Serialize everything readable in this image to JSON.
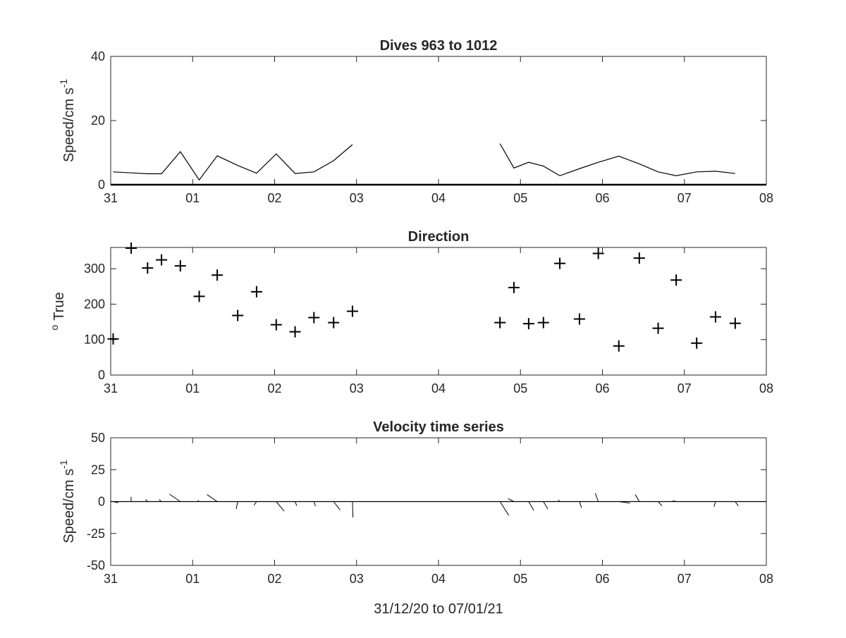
{
  "figure": {
    "xlabel": "31/12/20 to 07/01/21"
  },
  "chart_data": [
    {
      "type": "line",
      "title": "Dives 963 to 1012",
      "ylabel": "Speed/cm s",
      "ylabel_superscript": "-1",
      "xlim": [
        0,
        8
      ],
      "ylim": [
        0,
        40
      ],
      "xticks": [
        0,
        1,
        2,
        3,
        4,
        5,
        6,
        7,
        8
      ],
      "xtick_labels": [
        "31",
        "01",
        "02",
        "03",
        "04",
        "05",
        "06",
        "07",
        "08"
      ],
      "yticks": [
        0,
        20,
        40
      ],
      "ytick_labels": [
        "0",
        "20",
        "40"
      ],
      "grid": false,
      "series": [
        {
          "x": [
            0.03,
            0.25,
            0.45,
            0.62,
            0.85,
            1.08,
            1.3,
            1.55,
            1.78,
            2.02,
            2.25,
            2.48,
            2.72,
            2.95
          ],
          "y": [
            4.0,
            3.7,
            3.4,
            3.4,
            10.3,
            1.5,
            9.0,
            6.0,
            3.6,
            9.6,
            3.5,
            4.0,
            7.5,
            12.5
          ]
        },
        {
          "x": [
            4.75,
            4.92,
            5.1,
            5.28,
            5.48,
            5.72,
            5.95,
            6.2,
            6.45,
            6.68,
            6.9,
            7.15,
            7.38,
            7.62
          ],
          "y": [
            12.8,
            5.2,
            7.0,
            5.8,
            2.8,
            5.0,
            7.0,
            8.9,
            6.5,
            4.0,
            2.8,
            4.0,
            4.2,
            3.5
          ]
        }
      ]
    },
    {
      "type": "scatter",
      "title": "Direction",
      "ylabel": "True",
      "ylabel_prefix_superscript": "o",
      "marker": "+",
      "xlim": [
        0,
        8
      ],
      "ylim": [
        0,
        360
      ],
      "xticks": [
        0,
        1,
        2,
        3,
        4,
        5,
        6,
        7,
        8
      ],
      "xtick_labels": [
        "31",
        "01",
        "02",
        "03",
        "04",
        "05",
        "06",
        "07",
        "08"
      ],
      "yticks": [
        0,
        100,
        200,
        300
      ],
      "ytick_labels": [
        "0",
        "100",
        "200",
        "300"
      ],
      "grid": false,
      "x": [
        0.03,
        0.25,
        0.45,
        0.62,
        0.85,
        1.08,
        1.3,
        1.55,
        1.78,
        2.02,
        2.25,
        2.48,
        2.72,
        2.95,
        4.75,
        4.92,
        5.1,
        5.28,
        5.48,
        5.72,
        5.95,
        6.2,
        6.45,
        6.68,
        6.9,
        7.15,
        7.38,
        7.62
      ],
      "y": [
        102,
        358,
        302,
        325,
        308,
        222,
        282,
        168,
        235,
        142,
        122,
        162,
        148,
        180,
        148,
        247,
        145,
        148,
        315,
        158,
        343,
        82,
        330,
        132,
        268,
        90,
        164,
        146
      ]
    },
    {
      "type": "quiver",
      "title": "Velocity time series",
      "ylabel": "Speed/cm s",
      "ylabel_superscript": "-1",
      "xlim": [
        0,
        8
      ],
      "ylim": [
        -50,
        50
      ],
      "xticks": [
        0,
        1,
        2,
        3,
        4,
        5,
        6,
        7,
        8
      ],
      "xtick_labels": [
        "31",
        "01",
        "02",
        "03",
        "04",
        "05",
        "06",
        "07",
        "08"
      ],
      "yticks": [
        -50,
        -25,
        0,
        25,
        50
      ],
      "ytick_labels": [
        "-50",
        "-25",
        "0",
        "25",
        "50"
      ],
      "grid": false,
      "baseline": 0,
      "x": [
        0.03,
        0.25,
        0.45,
        0.62,
        0.85,
        1.08,
        1.3,
        1.55,
        1.78,
        2.02,
        2.25,
        2.48,
        2.72,
        2.95,
        4.75,
        4.92,
        5.1,
        5.28,
        5.48,
        5.72,
        5.95,
        6.2,
        6.45,
        6.68,
        6.9,
        7.15,
        7.38,
        7.62
      ],
      "u": [
        4.0,
        -0.1,
        -1.7,
        -1.9,
        -8.5,
        -1.1,
        -8.0,
        -1.2,
        -2.0,
        6.2,
        1.3,
        1.2,
        5.1,
        0.4,
        6.9,
        -4.6,
        4.0,
        3.4,
        -1.2,
        1.6,
        -2.4,
        8.8,
        -3.2,
        3.0,
        -2.6,
        4.0,
        -1.2,
        2.5
      ],
      "v": [
        -0.9,
        3.7,
        1.7,
        1.5,
        5.8,
        1.0,
        5.5,
        -5.9,
        -2.9,
        -7.4,
        -3.3,
        -3.6,
        -6.6,
        -12.5,
        -10.8,
        2.3,
        -7.0,
        -5.8,
        1.2,
        -4.8,
        6.5,
        -1.2,
        5.6,
        -3.4,
        0.6,
        -0.1,
        -4.0,
        -3.4
      ]
    }
  ]
}
